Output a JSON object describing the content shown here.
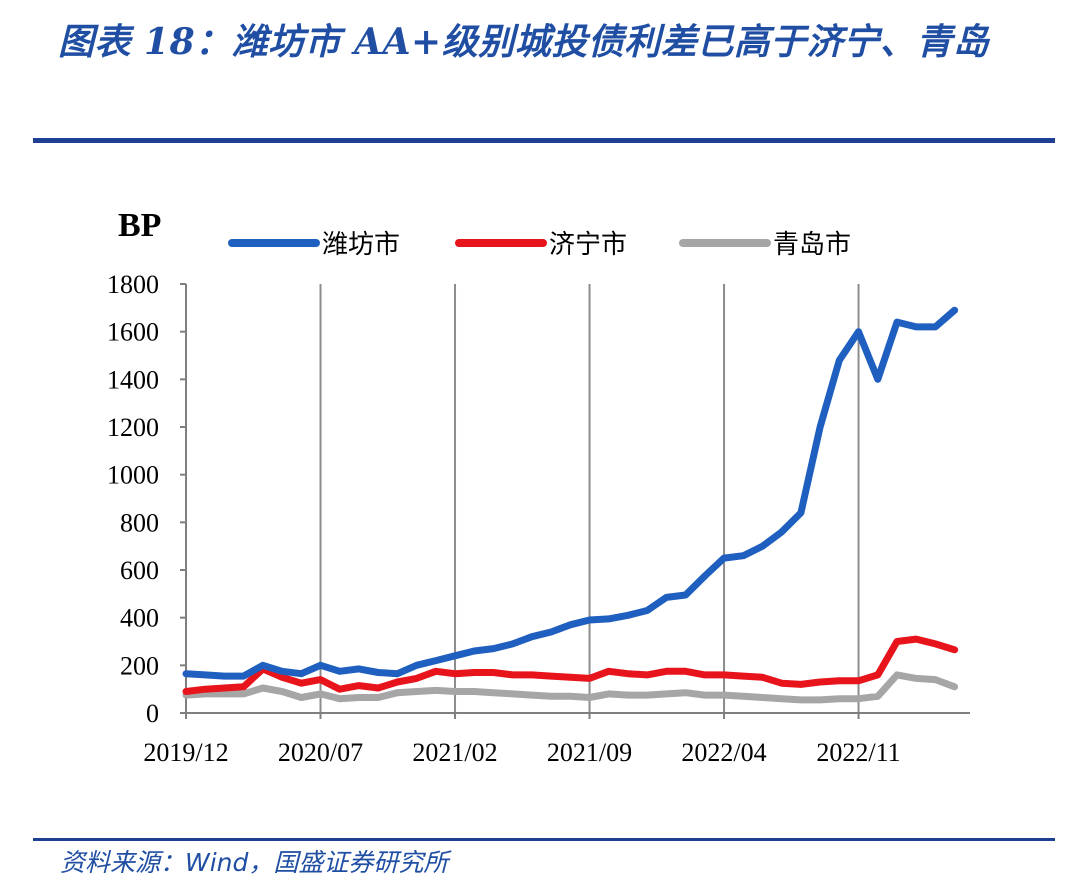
{
  "figure": {
    "title": "图表 18：潍坊市 AA+级别城投债利差已高于济宁、青岛",
    "source": "资料来源：Wind，国盛证券研究所"
  },
  "chart_data": {
    "type": "line",
    "unit_label": "BP",
    "ylim": [
      0,
      1800
    ],
    "yticks": [
      0,
      200,
      400,
      600,
      800,
      1000,
      1200,
      1400,
      1600,
      1800
    ],
    "xlim": [
      "2019-12",
      "2023-04-25"
    ],
    "xtick_labels": [
      "2019/12",
      "2020/07",
      "2021/02",
      "2021/09",
      "2022/04",
      "2022/11"
    ],
    "xtick_dates": [
      "2019-12",
      "2020-07",
      "2021-02",
      "2021-09",
      "2022-04",
      "2022-11"
    ],
    "vertical_grid": true,
    "horizontal_grid": false,
    "legend_position": "top",
    "x": [
      "2019-12",
      "2020-01",
      "2020-02",
      "2020-03",
      "2020-04",
      "2020-05",
      "2020-06",
      "2020-07",
      "2020-08",
      "2020-09",
      "2020-10",
      "2020-11",
      "2020-12",
      "2021-01",
      "2021-02",
      "2021-03",
      "2021-04",
      "2021-05",
      "2021-06",
      "2021-07",
      "2021-08",
      "2021-09",
      "2021-10",
      "2021-11",
      "2021-12",
      "2022-01",
      "2022-02",
      "2022-03",
      "2022-04",
      "2022-05",
      "2022-06",
      "2022-07",
      "2022-08",
      "2022-09",
      "2022-10",
      "2022-11",
      "2022-12",
      "2023-01",
      "2023-02",
      "2023-03",
      "2023-04"
    ],
    "series": [
      {
        "name": "潍坊市",
        "color": "#1f5fbf",
        "values": [
          165,
          160,
          155,
          155,
          200,
          175,
          165,
          200,
          175,
          185,
          170,
          165,
          200,
          220,
          240,
          260,
          270,
          290,
          320,
          340,
          370,
          390,
          395,
          410,
          430,
          485,
          495,
          575,
          650,
          660,
          700,
          760,
          840,
          1200,
          1480,
          1600,
          1400,
          1640,
          1620,
          1620,
          1690
        ]
      },
      {
        "name": "济宁市",
        "color": "#e8141b",
        "values": [
          90,
          100,
          105,
          110,
          185,
          150,
          125,
          140,
          100,
          115,
          105,
          130,
          145,
          175,
          165,
          170,
          170,
          160,
          160,
          155,
          150,
          145,
          175,
          165,
          160,
          175,
          175,
          160,
          160,
          155,
          150,
          125,
          120,
          130,
          135,
          135,
          160,
          300,
          310,
          290,
          265
        ]
      },
      {
        "name": "青岛市",
        "color": "#a6a6a6",
        "values": [
          75,
          80,
          80,
          80,
          105,
          90,
          65,
          80,
          60,
          65,
          65,
          85,
          90,
          95,
          90,
          90,
          85,
          80,
          75,
          70,
          70,
          65,
          80,
          75,
          75,
          80,
          85,
          75,
          75,
          70,
          65,
          60,
          55,
          55,
          60,
          60,
          70,
          160,
          145,
          140,
          110
        ]
      }
    ]
  }
}
